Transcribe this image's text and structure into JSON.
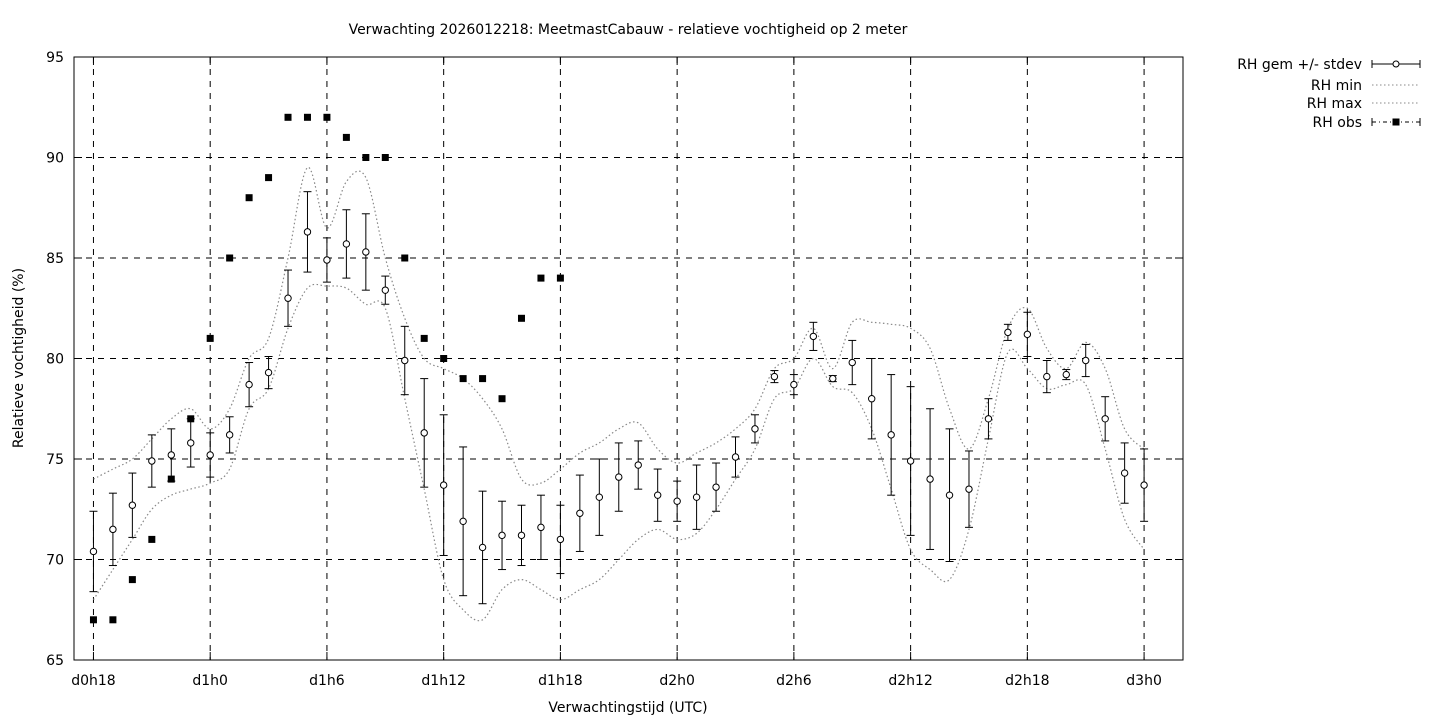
{
  "chart_data": {
    "type": "line",
    "title": "Verwachting 2026012218: MeetmastCabauw - relatieve vochtigheid op 2 meter",
    "xlabel": "Verwachtingstijd (UTC)",
    "ylabel": "Relatieve vochtigheid (%)",
    "x_unit": "hours since d0h18",
    "xlim": [
      -1,
      56
    ],
    "ylim": [
      65,
      95
    ],
    "x_tick_labels": [
      {
        "x": 0,
        "label": "d0h18"
      },
      {
        "x": 6,
        "label": "d1h0"
      },
      {
        "x": 12,
        "label": "d1h6"
      },
      {
        "x": 18,
        "label": "d1h12"
      },
      {
        "x": 24,
        "label": "d1h18"
      },
      {
        "x": 30,
        "label": "d2h0"
      },
      {
        "x": 36,
        "label": "d2h6"
      },
      {
        "x": 42,
        "label": "d2h12"
      },
      {
        "x": 48,
        "label": "d2h18"
      },
      {
        "x": 54,
        "label": "d3h0"
      }
    ],
    "y_ticks": [
      65,
      70,
      75,
      80,
      85,
      90,
      95
    ],
    "grid": true,
    "legend_position": "outside-top-right",
    "legend": [
      "RH gem +/- stdev",
      "RH min",
      "RH max",
      "RH obs"
    ],
    "series": [
      {
        "name": "RH gem +/- stdev",
        "style": "open-circle-errorbar",
        "x": [
          0,
          1,
          2,
          3,
          4,
          5,
          6,
          7,
          8,
          9,
          10,
          11,
          12,
          13,
          14,
          15,
          16,
          17,
          18,
          19,
          20,
          21,
          22,
          23,
          24,
          25,
          26,
          27,
          28,
          29,
          30,
          31,
          32,
          33,
          34,
          35,
          36,
          37,
          38,
          39,
          40,
          41,
          42,
          43,
          44,
          45,
          46,
          47,
          48,
          49,
          50,
          51,
          52,
          53,
          54
        ],
        "mean": [
          70.4,
          71.5,
          72.7,
          74.9,
          75.2,
          75.8,
          75.2,
          76.2,
          78.7,
          79.3,
          83.0,
          86.3,
          84.9,
          85.7,
          85.3,
          83.4,
          79.9,
          76.3,
          73.7,
          71.9,
          70.6,
          71.2,
          71.2,
          71.6,
          71.0,
          72.3,
          73.1,
          74.1,
          74.7,
          73.2,
          72.9,
          73.1,
          73.6,
          75.1,
          76.5,
          79.1,
          78.7,
          81.1,
          79.0,
          79.8,
          78.0,
          76.2,
          74.9,
          74.0,
          73.2,
          73.5,
          77.0,
          81.3,
          81.2,
          79.1,
          79.2,
          79.9,
          77.0,
          74.3,
          73.7
        ],
        "stdev": [
          2.0,
          1.8,
          1.6,
          1.3,
          1.3,
          1.2,
          1.1,
          0.9,
          1.1,
          0.8,
          1.4,
          2.0,
          1.1,
          1.7,
          1.9,
          0.7,
          1.7,
          2.7,
          3.5,
          3.7,
          2.8,
          1.7,
          1.5,
          1.6,
          1.7,
          1.9,
          1.9,
          1.7,
          1.2,
          1.3,
          1.0,
          1.6,
          1.2,
          1.0,
          0.7,
          0.3,
          0.5,
          0.7,
          0.15,
          1.1,
          2.0,
          3.0,
          3.7,
          3.5,
          3.3,
          1.9,
          1.0,
          0.4,
          1.1,
          0.8,
          0.25,
          0.8,
          1.1,
          1.5,
          1.8
        ]
      },
      {
        "name": "RH min",
        "style": "dotted",
        "x": [
          0,
          1,
          2,
          3,
          4,
          5,
          6,
          7,
          8,
          9,
          10,
          11,
          12,
          13,
          14,
          15,
          16,
          17,
          18,
          19,
          20,
          21,
          22,
          23,
          24,
          25,
          26,
          27,
          28,
          29,
          30,
          31,
          32,
          33,
          34,
          35,
          36,
          37,
          38,
          39,
          40,
          41,
          42,
          43,
          44,
          45,
          46,
          47,
          48,
          49,
          50,
          51,
          52,
          53,
          54
        ],
        "values": [
          68.0,
          69.5,
          71.0,
          72.5,
          73.2,
          73.5,
          73.8,
          74.5,
          77.5,
          78.5,
          81.5,
          83.5,
          83.6,
          83.5,
          82.7,
          82.5,
          78.0,
          73.5,
          69.0,
          67.5,
          67.0,
          68.5,
          69.0,
          68.5,
          68.0,
          68.5,
          69.0,
          70.0,
          71.0,
          71.5,
          71.0,
          71.3,
          72.5,
          74.0,
          75.5,
          78.0,
          78.5,
          80.0,
          78.6,
          78.3,
          76.5,
          73.5,
          70.5,
          69.5,
          69.0,
          71.5,
          76.0,
          80.3,
          79.5,
          78.5,
          78.7,
          78.7,
          75.5,
          72.0,
          70.5
        ]
      },
      {
        "name": "RH max",
        "style": "dotted",
        "x": [
          0,
          1,
          2,
          3,
          4,
          5,
          6,
          7,
          8,
          9,
          10,
          11,
          12,
          13,
          14,
          15,
          16,
          17,
          18,
          19,
          20,
          21,
          22,
          23,
          24,
          25,
          26,
          27,
          28,
          29,
          30,
          31,
          32,
          33,
          34,
          35,
          36,
          37,
          38,
          39,
          40,
          41,
          42,
          43,
          44,
          45,
          46,
          47,
          48,
          49,
          50,
          51,
          52,
          53,
          54
        ],
        "values": [
          74.0,
          74.5,
          75.0,
          76.0,
          77.0,
          77.5,
          76.5,
          77.5,
          80.0,
          81.0,
          85.0,
          89.5,
          86.5,
          88.8,
          89.0,
          85.0,
          82.0,
          80.0,
          79.5,
          79.0,
          78.0,
          76.5,
          74.0,
          73.8,
          74.5,
          75.3,
          75.8,
          76.5,
          76.8,
          75.5,
          74.8,
          75.3,
          75.8,
          76.5,
          77.5,
          79.5,
          80.0,
          81.5,
          79.5,
          81.8,
          81.8,
          81.7,
          81.5,
          80.5,
          77.5,
          75.5,
          78.0,
          81.5,
          82.5,
          80.5,
          79.5,
          80.8,
          79.5,
          76.5,
          75.5
        ]
      },
      {
        "name": "RH obs",
        "style": "filled-square",
        "x": [
          0,
          1,
          2,
          3,
          4,
          5,
          6,
          7,
          8,
          9,
          10,
          11,
          12,
          13,
          14,
          15,
          16,
          17,
          18,
          19,
          20,
          21,
          22,
          23,
          24
        ],
        "values": [
          67,
          67,
          69,
          71,
          74,
          77,
          81,
          85,
          88,
          89,
          92,
          92,
          92,
          91,
          90,
          90,
          85,
          81,
          80,
          79,
          79,
          78,
          82,
          84,
          84
        ]
      }
    ]
  }
}
